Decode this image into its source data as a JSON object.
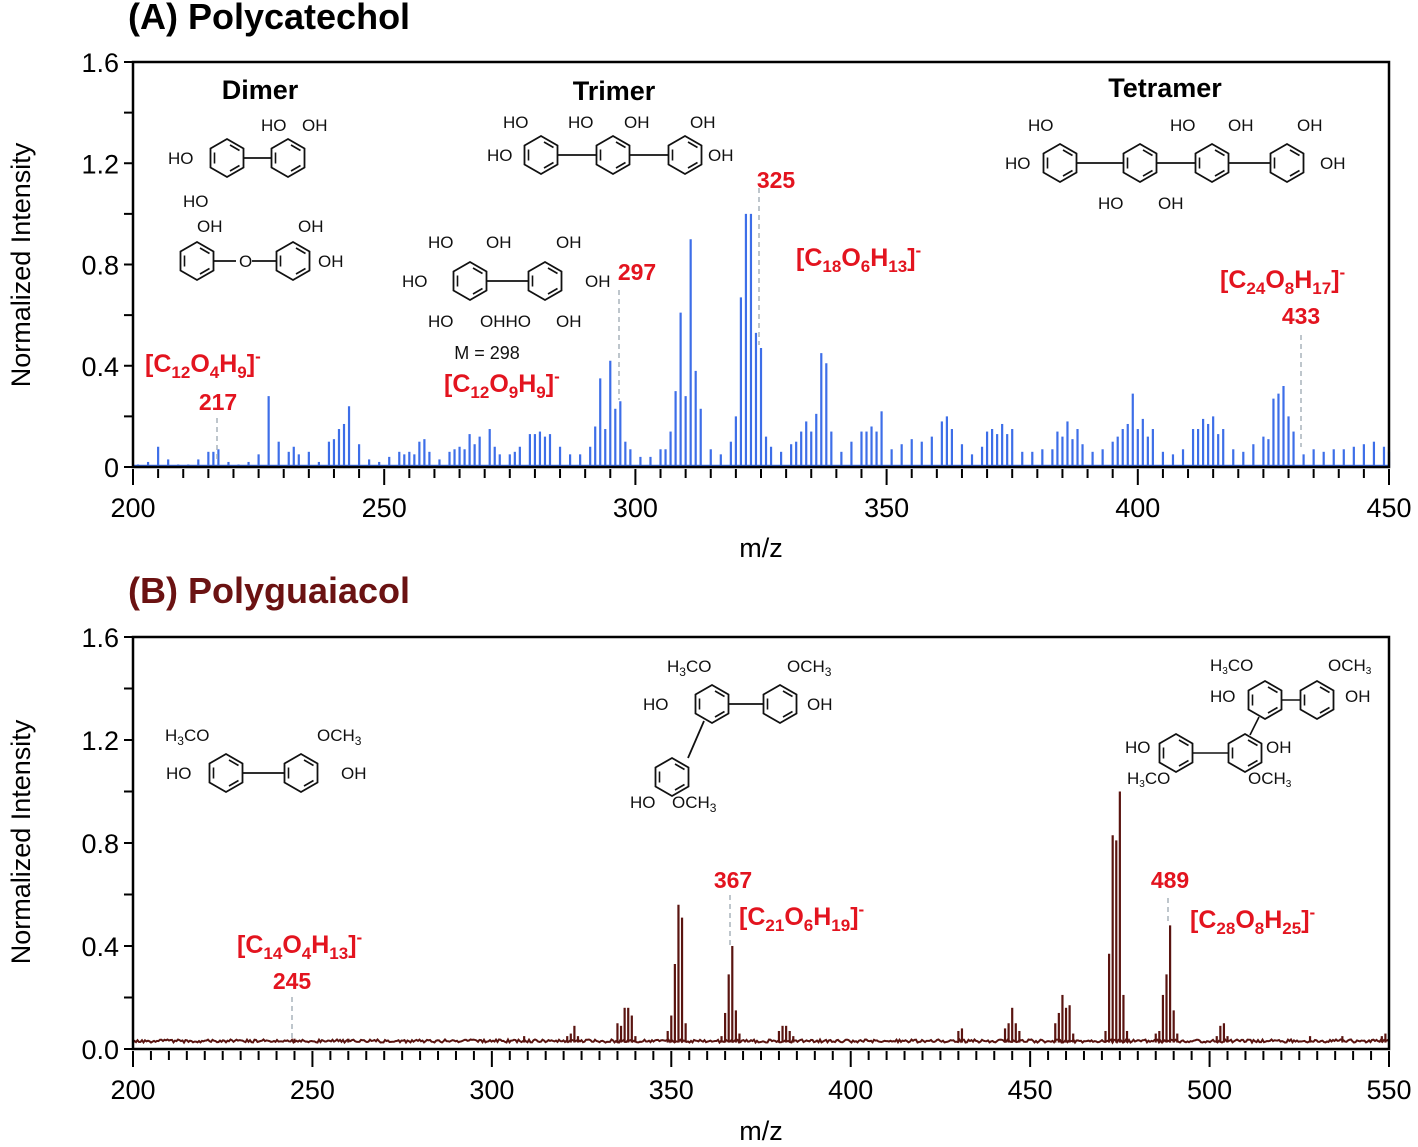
{
  "figure": {
    "panel_a_title": "(A) Polycatechol",
    "panel_b_title": "(B) Polyguaiacol"
  },
  "colors": {
    "panel_a_series": "#3d6ee8",
    "panel_b_series": "#5a1410",
    "annotation_red": "#e3141f",
    "panel_b_title": "#6b1212",
    "guide_line": "#a9b4bb"
  },
  "chart_data": [
    {
      "type": "bar",
      "title": "(A) Polycatechol",
      "xlabel": "m/z",
      "ylabel": "Normalized Intensity",
      "xlim": [
        200,
        450
      ],
      "ylim": [
        0,
        1.6
      ],
      "x_ticks": [
        200,
        250,
        300,
        350,
        400,
        450
      ],
      "y_ticks": [
        "0",
        "0.4",
        "0.8",
        "1.2",
        "1.6"
      ],
      "grid": false,
      "series_color": "#3d6ee8",
      "peaks": [
        [
          201,
          0.01
        ],
        [
          203,
          0.02
        ],
        [
          205,
          0.08
        ],
        [
          207,
          0.03
        ],
        [
          209,
          0.01
        ],
        [
          211,
          0.01
        ],
        [
          213,
          0.03
        ],
        [
          215,
          0.06
        ],
        [
          216,
          0.06
        ],
        [
          217,
          0.07
        ],
        [
          219,
          0.02
        ],
        [
          221,
          0.01
        ],
        [
          223,
          0.02
        ],
        [
          225,
          0.05
        ],
        [
          227,
          0.28
        ],
        [
          229,
          0.1
        ],
        [
          231,
          0.06
        ],
        [
          232,
          0.08
        ],
        [
          233,
          0.05
        ],
        [
          235,
          0.06
        ],
        [
          237,
          0.02
        ],
        [
          239,
          0.1
        ],
        [
          240,
          0.11
        ],
        [
          241,
          0.15
        ],
        [
          242,
          0.17
        ],
        [
          243,
          0.24
        ],
        [
          245,
          0.09
        ],
        [
          247,
          0.03
        ],
        [
          249,
          0.02
        ],
        [
          251,
          0.04
        ],
        [
          253,
          0.06
        ],
        [
          254,
          0.05
        ],
        [
          255,
          0.06
        ],
        [
          256,
          0.05
        ],
        [
          257,
          0.1
        ],
        [
          258,
          0.11
        ],
        [
          259,
          0.06
        ],
        [
          261,
          0.03
        ],
        [
          263,
          0.06
        ],
        [
          264,
          0.07
        ],
        [
          265,
          0.08
        ],
        [
          266,
          0.07
        ],
        [
          267,
          0.13
        ],
        [
          268,
          0.09
        ],
        [
          269,
          0.12
        ],
        [
          271,
          0.15
        ],
        [
          272,
          0.08
        ],
        [
          273,
          0.05
        ],
        [
          275,
          0.05
        ],
        [
          276,
          0.06
        ],
        [
          277,
          0.08
        ],
        [
          279,
          0.13
        ],
        [
          280,
          0.13
        ],
        [
          281,
          0.14
        ],
        [
          282,
          0.12
        ],
        [
          283,
          0.13
        ],
        [
          285,
          0.08
        ],
        [
          287,
          0.05
        ],
        [
          289,
          0.05
        ],
        [
          291,
          0.08
        ],
        [
          292,
          0.16
        ],
        [
          293,
          0.35
        ],
        [
          294,
          0.15
        ],
        [
          295,
          0.42
        ],
        [
          296,
          0.23
        ],
        [
          297,
          0.26
        ],
        [
          298,
          0.1
        ],
        [
          299,
          0.07
        ],
        [
          301,
          0.04
        ],
        [
          303,
          0.04
        ],
        [
          305,
          0.07
        ],
        [
          306,
          0.07
        ],
        [
          307,
          0.14
        ],
        [
          308,
          0.3
        ],
        [
          309,
          0.61
        ],
        [
          310,
          0.28
        ],
        [
          311,
          0.9
        ],
        [
          312,
          0.38
        ],
        [
          313,
          0.23
        ],
        [
          315,
          0.07
        ],
        [
          317,
          0.05
        ],
        [
          319,
          0.1
        ],
        [
          320,
          0.2
        ],
        [
          321,
          0.67
        ],
        [
          322,
          1.0
        ],
        [
          323,
          1.0
        ],
        [
          324,
          0.53
        ],
        [
          325,
          0.47
        ],
        [
          326,
          0.12
        ],
        [
          327,
          0.08
        ],
        [
          329,
          0.06
        ],
        [
          331,
          0.09
        ],
        [
          332,
          0.1
        ],
        [
          333,
          0.14
        ],
        [
          334,
          0.18
        ],
        [
          335,
          0.14
        ],
        [
          336,
          0.21
        ],
        [
          337,
          0.45
        ],
        [
          338,
          0.41
        ],
        [
          339,
          0.14
        ],
        [
          341,
          0.06
        ],
        [
          343,
          0.1
        ],
        [
          345,
          0.14
        ],
        [
          346,
          0.14
        ],
        [
          347,
          0.16
        ],
        [
          348,
          0.14
        ],
        [
          349,
          0.22
        ],
        [
          351,
          0.07
        ],
        [
          353,
          0.09
        ],
        [
          355,
          0.11
        ],
        [
          357,
          0.1
        ],
        [
          359,
          0.12
        ],
        [
          361,
          0.18
        ],
        [
          362,
          0.2
        ],
        [
          363,
          0.15
        ],
        [
          365,
          0.09
        ],
        [
          367,
          0.05
        ],
        [
          369,
          0.08
        ],
        [
          370,
          0.14
        ],
        [
          371,
          0.15
        ],
        [
          372,
          0.13
        ],
        [
          373,
          0.17
        ],
        [
          374,
          0.13
        ],
        [
          375,
          0.15
        ],
        [
          377,
          0.06
        ],
        [
          379,
          0.06
        ],
        [
          381,
          0.07
        ],
        [
          383,
          0.07
        ],
        [
          384,
          0.14
        ],
        [
          385,
          0.12
        ],
        [
          386,
          0.18
        ],
        [
          387,
          0.11
        ],
        [
          388,
          0.15
        ],
        [
          389,
          0.09
        ],
        [
          391,
          0.06
        ],
        [
          393,
          0.07
        ],
        [
          395,
          0.1
        ],
        [
          396,
          0.12
        ],
        [
          397,
          0.15
        ],
        [
          398,
          0.17
        ],
        [
          399,
          0.29
        ],
        [
          400,
          0.15
        ],
        [
          401,
          0.19
        ],
        [
          402,
          0.12
        ],
        [
          403,
          0.15
        ],
        [
          405,
          0.06
        ],
        [
          407,
          0.05
        ],
        [
          409,
          0.07
        ],
        [
          411,
          0.15
        ],
        [
          412,
          0.15
        ],
        [
          413,
          0.19
        ],
        [
          414,
          0.17
        ],
        [
          415,
          0.2
        ],
        [
          416,
          0.13
        ],
        [
          417,
          0.15
        ],
        [
          419,
          0.07
        ],
        [
          421,
          0.06
        ],
        [
          423,
          0.09
        ],
        [
          425,
          0.12
        ],
        [
          426,
          0.11
        ],
        [
          427,
          0.27
        ],
        [
          428,
          0.29
        ],
        [
          429,
          0.32
        ],
        [
          430,
          0.2
        ],
        [
          431,
          0.14
        ],
        [
          433,
          0.05
        ],
        [
          435,
          0.07
        ],
        [
          437,
          0.06
        ],
        [
          439,
          0.07
        ],
        [
          441,
          0.07
        ],
        [
          443,
          0.08
        ],
        [
          445,
          0.09
        ],
        [
          447,
          0.1
        ],
        [
          449,
          0.08
        ],
        [
          450,
          0.06
        ]
      ],
      "annotations": [
        {
          "mz": "217",
          "formula": "[C12O4H9]-"
        },
        {
          "mz": "297",
          "formula": "[C12O9H9]-",
          "note": "M = 298"
        },
        {
          "mz": "325",
          "formula": "[C18O6H13]-"
        },
        {
          "mz": "433",
          "formula": "[C24O8H17]-"
        }
      ],
      "structure_labels": [
        "Dimer",
        "Trimer",
        "Tetramer"
      ]
    },
    {
      "type": "bar",
      "title": "(B) Polyguaiacol",
      "xlabel": "m/z",
      "ylabel": "Normalized Intensity",
      "xlim": [
        200,
        550
      ],
      "ylim": [
        0,
        1.6
      ],
      "x_ticks": [
        200,
        250,
        300,
        350,
        400,
        450,
        500,
        550
      ],
      "y_ticks": [
        "0.0",
        "0.4",
        "0.8",
        "1.2",
        "1.6"
      ],
      "grid": false,
      "baseline": 0.025,
      "series_color": "#5a1410",
      "peaks": [
        [
          245,
          0.04
        ],
        [
          260,
          0.04
        ],
        [
          309,
          0.05
        ],
        [
          321,
          0.05
        ],
        [
          322,
          0.06
        ],
        [
          323,
          0.09
        ],
        [
          324,
          0.05
        ],
        [
          335,
          0.1
        ],
        [
          336,
          0.09
        ],
        [
          337,
          0.16
        ],
        [
          338,
          0.16
        ],
        [
          339,
          0.13
        ],
        [
          340,
          0.05
        ],
        [
          349,
          0.07
        ],
        [
          350,
          0.13
        ],
        [
          351,
          0.33
        ],
        [
          352,
          0.56
        ],
        [
          353,
          0.51
        ],
        [
          354,
          0.1
        ],
        [
          364,
          0.05
        ],
        [
          365,
          0.14
        ],
        [
          366,
          0.29
        ],
        [
          367,
          0.4
        ],
        [
          368,
          0.15
        ],
        [
          369,
          0.06
        ],
        [
          380,
          0.07
        ],
        [
          381,
          0.09
        ],
        [
          382,
          0.09
        ],
        [
          383,
          0.07
        ],
        [
          384,
          0.05
        ],
        [
          430,
          0.07
        ],
        [
          431,
          0.08
        ],
        [
          443,
          0.08
        ],
        [
          444,
          0.1
        ],
        [
          445,
          0.16
        ],
        [
          446,
          0.1
        ],
        [
          447,
          0.07
        ],
        [
          457,
          0.1
        ],
        [
          458,
          0.14
        ],
        [
          459,
          0.21
        ],
        [
          460,
          0.16
        ],
        [
          461,
          0.17
        ],
        [
          462,
          0.06
        ],
        [
          471,
          0.07
        ],
        [
          472,
          0.37
        ],
        [
          473,
          0.83
        ],
        [
          474,
          0.81
        ],
        [
          475,
          1.0
        ],
        [
          476,
          0.21
        ],
        [
          477,
          0.07
        ],
        [
          485,
          0.06
        ],
        [
          486,
          0.07
        ],
        [
          487,
          0.21
        ],
        [
          488,
          0.29
        ],
        [
          489,
          0.48
        ],
        [
          490,
          0.15
        ],
        [
          491,
          0.06
        ],
        [
          502,
          0.05
        ],
        [
          503,
          0.09
        ],
        [
          504,
          0.1
        ],
        [
          505,
          0.05
        ],
        [
          528,
          0.05
        ],
        [
          537,
          0.05
        ],
        [
          548,
          0.05
        ],
        [
          549,
          0.06
        ]
      ],
      "annotations": [
        {
          "mz": "245",
          "formula": "[C14O4H13]-"
        },
        {
          "mz": "367",
          "formula": "[C21O6H19]-"
        },
        {
          "mz": "489",
          "formula": "[C28O8H25]-"
        }
      ]
    }
  ],
  "labels": {
    "dimer": "Dimer",
    "trimer": "Trimer",
    "tetramer": "Tetramer",
    "mass_note": "M = 298",
    "mz_217": "217",
    "mz_297": "297",
    "mz_325": "325",
    "mz_433": "433",
    "mz_245": "245",
    "mz_367": "367",
    "mz_489": "489",
    "xlabel": "m/z",
    "ylabel": "Normalized Intensity"
  }
}
